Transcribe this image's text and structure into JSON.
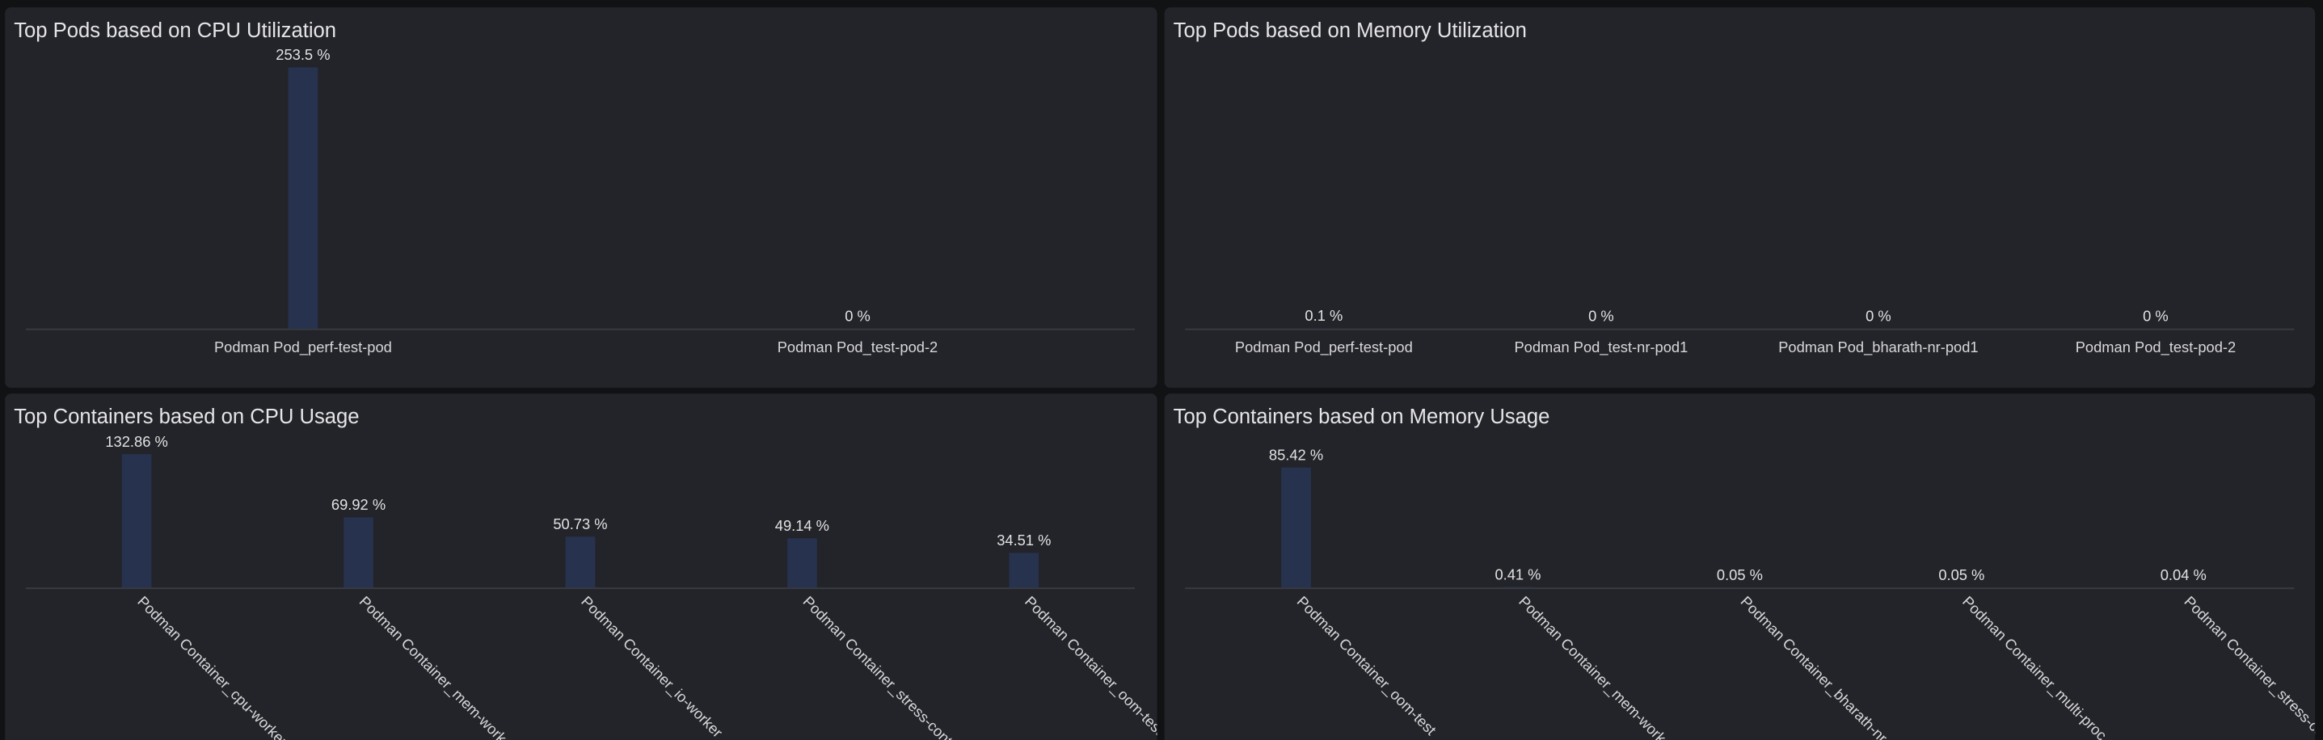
{
  "chart_data": [
    {
      "type": "bar",
      "title": "Top Pods based on CPU Utilization",
      "categories": [
        "Podman Pod_perf-test-pod",
        "Podman Pod_test-pod-2"
      ],
      "values": [
        253.5,
        0
      ],
      "value_labels": [
        "253.5 %",
        "0 %"
      ],
      "color": "#27324f",
      "ylim": [
        0,
        260
      ]
    },
    {
      "type": "bar",
      "title": "Top Pods based on Memory Utilization",
      "categories": [
        "Podman Pod_perf-test-pod",
        "Podman Pod_test-nr-pod1",
        "Podman Pod_bharath-nr-pod1",
        "Podman Pod_test-pod-2"
      ],
      "values": [
        0.1,
        0,
        0,
        0
      ],
      "value_labels": [
        "0.1 %",
        "0 %",
        "0 %",
        "0 %"
      ],
      "color": "#27324f",
      "ylim": [
        0,
        100
      ]
    },
    {
      "type": "bar",
      "title": "Top Containers based on CPU Usage",
      "categories": [
        "Podman Container_cpu-worker",
        "Podman Container_mem-worker",
        "Podman Container_io-worker",
        "Podman Container_stress-contai...",
        "Podman Container_oom-test"
      ],
      "values": [
        132.86,
        69.92,
        50.73,
        49.14,
        34.51
      ],
      "value_labels": [
        "132.86 %",
        "69.92 %",
        "50.73 %",
        "49.14 %",
        "34.51 %"
      ],
      "color": "#27324f",
      "ylim": [
        0,
        140
      ]
    },
    {
      "type": "bar",
      "title": "Top Containers based on Memory Usage",
      "categories": [
        "Podman Container_oom-test",
        "Podman Container_mem-worker",
        "Podman Container_bharath-nr-co...",
        "Podman Container_multi-proc",
        "Podman Container_stress-cont..."
      ],
      "values": [
        85.42,
        0.41,
        0.05,
        0.05,
        0.04
      ],
      "value_labels": [
        "85.42 %",
        "0.41 %",
        "0.05 %",
        "0.05 %",
        "0.04 %"
      ],
      "color": "#27324f",
      "ylim": [
        0,
        100
      ]
    }
  ]
}
